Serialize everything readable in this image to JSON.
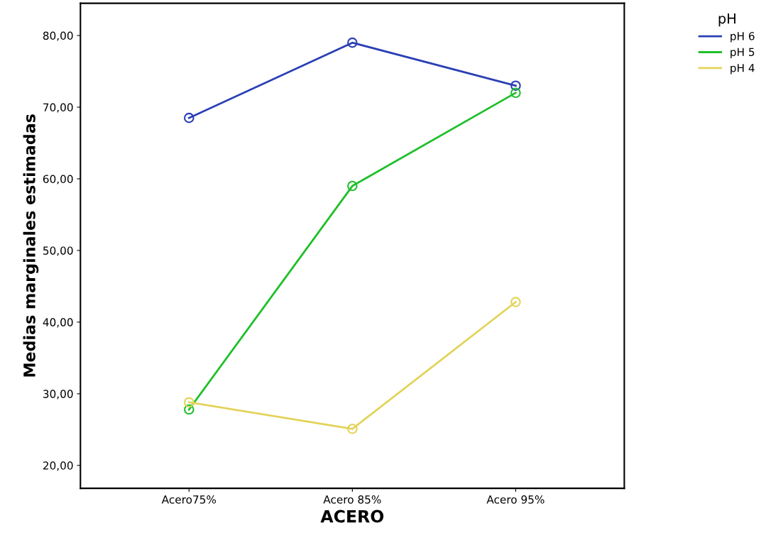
{
  "chart_data": {
    "type": "line",
    "xlabel": "ACERO",
    "ylabel": "Medias marginales estimadas",
    "legend_title": "pH",
    "categories": [
      "Acero75%",
      "Acero 85%",
      "Acero 95%"
    ],
    "series": [
      {
        "name": "pH 6",
        "color": "#2a3fb5",
        "values": [
          68.5,
          79.0,
          73.0
        ]
      },
      {
        "name": "pH 5",
        "color": "#1fbf2a",
        "values": [
          27.8,
          59.0,
          72.0
        ]
      },
      {
        "name": "pH 4",
        "color": "#e3d35a",
        "values": [
          28.8,
          25.1,
          42.8
        ]
      }
    ],
    "ylim": [
      16.8,
      84.5
    ],
    "yticks": [
      {
        "value": 20,
        "label": "20,00"
      },
      {
        "value": 30,
        "label": "30,00"
      },
      {
        "value": 40,
        "label": "40,00"
      },
      {
        "value": 50,
        "label": "50,00"
      },
      {
        "value": 60,
        "label": "60,00"
      },
      {
        "value": 70,
        "label": "70,00"
      },
      {
        "value": 80,
        "label": "80,00"
      }
    ],
    "marker": "circle",
    "line_style": "solid",
    "grid": false,
    "legend": "top right"
  }
}
